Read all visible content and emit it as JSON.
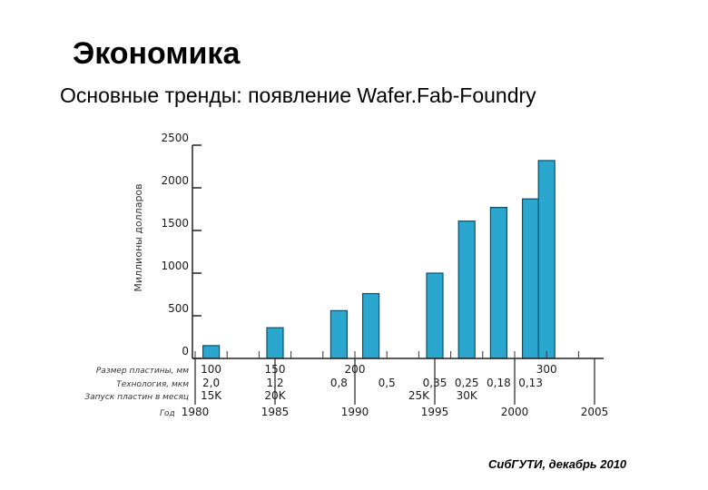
{
  "slide": {
    "title": "Экономика",
    "subtitle": "Основные тренды: появление Wafer.Fab-Foundry",
    "footer": "СибГУТИ, декабрь 2010"
  },
  "chart_data": {
    "type": "bar",
    "ylabel": "Миллионы долларов",
    "ylim": [
      0,
      2500
    ],
    "yticks": [
      0,
      500,
      1000,
      1500,
      2000,
      2500
    ],
    "bar_color": "#2aa6cf",
    "xaxis_years": {
      "label": "Год",
      "ticks": [
        "1980",
        "1985",
        "1990",
        "1995",
        "2000",
        "2005"
      ]
    },
    "bars": [
      {
        "year": 1981,
        "value": 150
      },
      {
        "year": 1985,
        "value": 360
      },
      {
        "year": 1989,
        "value": 560
      },
      {
        "year": 1991,
        "value": 760
      },
      {
        "year": 1995,
        "value": 1000
      },
      {
        "year": 1997,
        "value": 1610
      },
      {
        "year": 1999,
        "value": 1770
      },
      {
        "year": 2001,
        "value": 1870
      },
      {
        "year": 2002,
        "value": 2320
      }
    ],
    "info_rows": [
      {
        "label": "Размер пластины, мм",
        "entries": [
          {
            "year": 1981,
            "text": "100"
          },
          {
            "year": 1985,
            "text": "150"
          },
          {
            "year": 1990,
            "text": "200"
          },
          {
            "year": 2002,
            "text": "300"
          }
        ]
      },
      {
        "label": "Технология, мкм",
        "entries": [
          {
            "year": 1981,
            "text": "2,0"
          },
          {
            "year": 1985,
            "text": "1,2"
          },
          {
            "year": 1989,
            "text": "0,8"
          },
          {
            "year": 1992,
            "text": "0,5"
          },
          {
            "year": 1995,
            "text": "0,35"
          },
          {
            "year": 1997,
            "text": "0,25"
          },
          {
            "year": 1999,
            "text": "0,18"
          },
          {
            "year": 2001,
            "text": "0,13"
          }
        ]
      },
      {
        "label": "Запуск пластин в месяц",
        "entries": [
          {
            "year": 1981,
            "text": "15K"
          },
          {
            "year": 1985,
            "text": "20K"
          },
          {
            "year": 1994,
            "text": "25K"
          },
          {
            "year": 1997,
            "text": "30K"
          }
        ]
      }
    ]
  }
}
